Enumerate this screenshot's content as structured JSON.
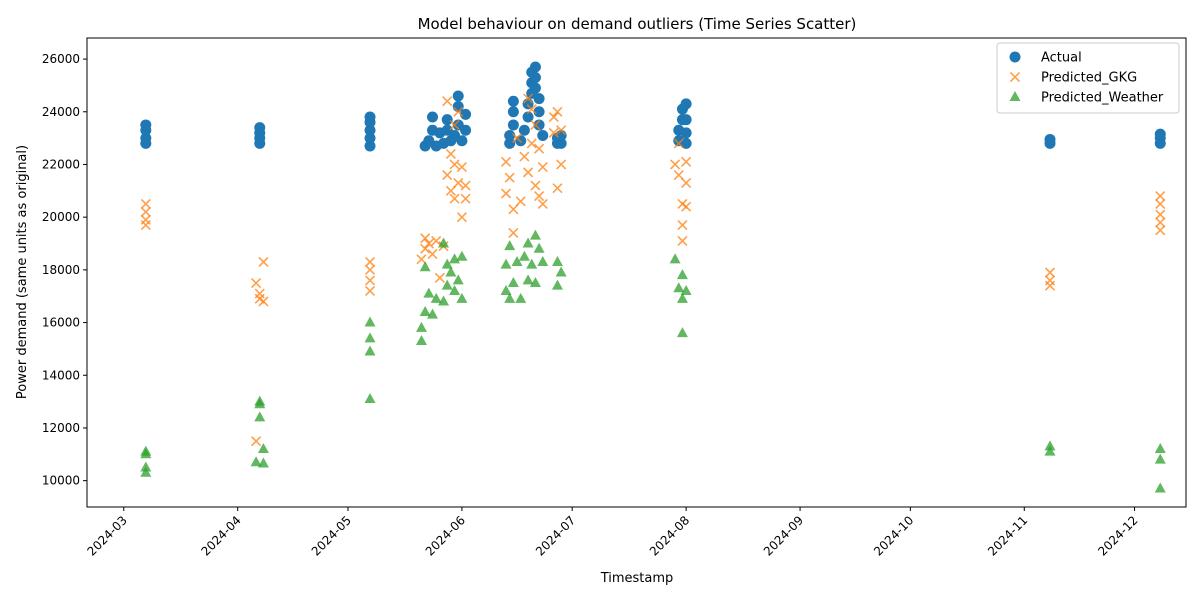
{
  "chart_data": {
    "type": "scatter",
    "title": "Model behaviour on demand outliers (Time Series Scatter)",
    "xlabel": "Timestamp",
    "ylabel": "Power demand (same units as original)",
    "xlim": [
      "2024-02-20",
      "2024-12-15"
    ],
    "ylim": [
      9000,
      26800
    ],
    "x_ticks": [
      "2024-03-01",
      "2024-04-01",
      "2024-05-01",
      "2024-06-01",
      "2024-07-01",
      "2024-08-01",
      "2024-09-01",
      "2024-10-01",
      "2024-11-01",
      "2024-12-01"
    ],
    "x_tick_labels": [
      "2024-03",
      "2024-04",
      "2024-05",
      "2024-06",
      "2024-07",
      "2024-08",
      "2024-09",
      "2024-10",
      "2024-11",
      "2024-12"
    ],
    "y_ticks": [
      10000,
      12000,
      14000,
      16000,
      18000,
      20000,
      22000,
      24000,
      26000
    ],
    "y_tick_labels": [
      "10000",
      "12000",
      "14000",
      "16000",
      "18000",
      "20000",
      "22000",
      "24000",
      "26000"
    ],
    "grid": false,
    "legend_position": "top-right",
    "series": [
      {
        "name": "Actual",
        "marker": "circle",
        "color": "#1f77b4",
        "points": [
          [
            "2024-03-07",
            22800
          ],
          [
            "2024-03-07",
            23000
          ],
          [
            "2024-03-07",
            23300
          ],
          [
            "2024-03-07",
            23500
          ],
          [
            "2024-04-07",
            22800
          ],
          [
            "2024-04-07",
            23000
          ],
          [
            "2024-04-07",
            23200
          ],
          [
            "2024-04-07",
            23400
          ],
          [
            "2024-05-07",
            22700
          ],
          [
            "2024-05-07",
            23000
          ],
          [
            "2024-05-07",
            23300
          ],
          [
            "2024-05-07",
            23600
          ],
          [
            "2024-05-07",
            23800
          ],
          [
            "2024-05-22",
            22700
          ],
          [
            "2024-05-23",
            22900
          ],
          [
            "2024-05-24",
            23300
          ],
          [
            "2024-05-24",
            23800
          ],
          [
            "2024-05-25",
            22700
          ],
          [
            "2024-05-26",
            23200
          ],
          [
            "2024-05-27",
            22800
          ],
          [
            "2024-05-28",
            23300
          ],
          [
            "2024-05-28",
            23700
          ],
          [
            "2024-05-29",
            22900
          ],
          [
            "2024-05-30",
            23100
          ],
          [
            "2024-05-31",
            23500
          ],
          [
            "2024-05-31",
            24200
          ],
          [
            "2024-05-31",
            24600
          ],
          [
            "2024-06-01",
            22900
          ],
          [
            "2024-06-02",
            23300
          ],
          [
            "2024-06-02",
            23900
          ],
          [
            "2024-06-14",
            22800
          ],
          [
            "2024-06-14",
            23100
          ],
          [
            "2024-06-15",
            23500
          ],
          [
            "2024-06-15",
            24000
          ],
          [
            "2024-06-15",
            24400
          ],
          [
            "2024-06-17",
            22900
          ],
          [
            "2024-06-18",
            23300
          ],
          [
            "2024-06-19",
            23800
          ],
          [
            "2024-06-19",
            24300
          ],
          [
            "2024-06-20",
            24700
          ],
          [
            "2024-06-20",
            25100
          ],
          [
            "2024-06-20",
            25500
          ],
          [
            "2024-06-21",
            25700
          ],
          [
            "2024-06-21",
            25300
          ],
          [
            "2024-06-21",
            24900
          ],
          [
            "2024-06-22",
            24500
          ],
          [
            "2024-06-22",
            24000
          ],
          [
            "2024-06-22",
            23500
          ],
          [
            "2024-06-23",
            23100
          ],
          [
            "2024-06-27",
            22800
          ],
          [
            "2024-06-27",
            23000
          ],
          [
            "2024-06-28",
            22800
          ],
          [
            "2024-06-28",
            23100
          ],
          [
            "2024-07-30",
            22900
          ],
          [
            "2024-07-30",
            23300
          ],
          [
            "2024-07-31",
            23700
          ],
          [
            "2024-07-31",
            24100
          ],
          [
            "2024-08-01",
            22800
          ],
          [
            "2024-08-01",
            23200
          ],
          [
            "2024-08-01",
            23700
          ],
          [
            "2024-08-01",
            24300
          ],
          [
            "2024-11-08",
            22800
          ],
          [
            "2024-11-08",
            22950
          ],
          [
            "2024-12-08",
            22800
          ],
          [
            "2024-12-08",
            23000
          ],
          [
            "2024-12-08",
            23150
          ]
        ]
      },
      {
        "name": "Predicted_GKG",
        "marker": "x",
        "color": "#ff7f0e",
        "points": [
          [
            "2024-03-07",
            20500
          ],
          [
            "2024-03-07",
            20200
          ],
          [
            "2024-03-07",
            19900
          ],
          [
            "2024-03-07",
            19700
          ],
          [
            "2024-04-06",
            17500
          ],
          [
            "2024-04-07",
            17100
          ],
          [
            "2024-04-07",
            16900
          ],
          [
            "2024-04-08",
            18300
          ],
          [
            "2024-04-08",
            16800
          ],
          [
            "2024-04-06",
            11500
          ],
          [
            "2024-05-07",
            18300
          ],
          [
            "2024-05-07",
            18000
          ],
          [
            "2024-05-07",
            17600
          ],
          [
            "2024-05-07",
            17200
          ],
          [
            "2024-05-21",
            18400
          ],
          [
            "2024-05-22",
            19200
          ],
          [
            "2024-05-22",
            18800
          ],
          [
            "2024-05-23",
            19000
          ],
          [
            "2024-05-24",
            18600
          ],
          [
            "2024-05-25",
            19100
          ],
          [
            "2024-05-26",
            17700
          ],
          [
            "2024-05-27",
            18900
          ],
          [
            "2024-05-28",
            24400
          ],
          [
            "2024-05-28",
            21600
          ],
          [
            "2024-05-29",
            22400
          ],
          [
            "2024-05-29",
            21000
          ],
          [
            "2024-05-30",
            23500
          ],
          [
            "2024-05-30",
            22000
          ],
          [
            "2024-05-30",
            20700
          ],
          [
            "2024-05-31",
            24000
          ],
          [
            "2024-05-31",
            21300
          ],
          [
            "2024-06-01",
            20000
          ],
          [
            "2024-06-01",
            21900
          ],
          [
            "2024-06-02",
            21200
          ],
          [
            "2024-06-02",
            20700
          ],
          [
            "2024-06-13",
            22100
          ],
          [
            "2024-06-13",
            20900
          ],
          [
            "2024-06-14",
            21500
          ],
          [
            "2024-06-15",
            20300
          ],
          [
            "2024-06-15",
            19400
          ],
          [
            "2024-06-16",
            23000
          ],
          [
            "2024-06-17",
            20600
          ],
          [
            "2024-06-18",
            22300
          ],
          [
            "2024-06-19",
            24500
          ],
          [
            "2024-06-19",
            21700
          ],
          [
            "2024-06-20",
            24100
          ],
          [
            "2024-06-20",
            22800
          ],
          [
            "2024-06-21",
            23500
          ],
          [
            "2024-06-21",
            21200
          ],
          [
            "2024-06-22",
            22600
          ],
          [
            "2024-06-22",
            20800
          ],
          [
            "2024-06-23",
            21900
          ],
          [
            "2024-06-23",
            20500
          ],
          [
            "2024-06-26",
            23800
          ],
          [
            "2024-06-26",
            23200
          ],
          [
            "2024-06-27",
            24000
          ],
          [
            "2024-06-27",
            21100
          ],
          [
            "2024-06-28",
            22000
          ],
          [
            "2024-06-28",
            23300
          ],
          [
            "2024-07-29",
            22000
          ],
          [
            "2024-07-30",
            21600
          ],
          [
            "2024-07-30",
            22800
          ],
          [
            "2024-07-31",
            20500
          ],
          [
            "2024-07-31",
            19700
          ],
          [
            "2024-07-31",
            19100
          ],
          [
            "2024-08-01",
            22100
          ],
          [
            "2024-08-01",
            21300
          ],
          [
            "2024-08-01",
            20400
          ],
          [
            "2024-11-08",
            17900
          ],
          [
            "2024-11-08",
            17600
          ],
          [
            "2024-11-08",
            17400
          ],
          [
            "2024-12-08",
            20800
          ],
          [
            "2024-12-08",
            20500
          ],
          [
            "2024-12-08",
            20100
          ],
          [
            "2024-12-08",
            19800
          ],
          [
            "2024-12-08",
            19500
          ]
        ]
      },
      {
        "name": "Predicted_Weather",
        "marker": "triangle",
        "color": "#2ca02c",
        "points": [
          [
            "2024-03-07",
            11100
          ],
          [
            "2024-03-07",
            11000
          ],
          [
            "2024-03-07",
            10500
          ],
          [
            "2024-03-07",
            10300
          ],
          [
            "2024-04-07",
            13000
          ],
          [
            "2024-04-07",
            12900
          ],
          [
            "2024-04-07",
            12400
          ],
          [
            "2024-04-08",
            11200
          ],
          [
            "2024-04-06",
            10700
          ],
          [
            "2024-04-08",
            10650
          ],
          [
            "2024-05-07",
            16000
          ],
          [
            "2024-05-07",
            15400
          ],
          [
            "2024-05-07",
            14900
          ],
          [
            "2024-05-07",
            13100
          ],
          [
            "2024-05-21",
            15300
          ],
          [
            "2024-05-21",
            15800
          ],
          [
            "2024-05-22",
            16400
          ],
          [
            "2024-05-22",
            18100
          ],
          [
            "2024-05-23",
            17100
          ],
          [
            "2024-05-24",
            16300
          ],
          [
            "2024-05-25",
            16900
          ],
          [
            "2024-05-27",
            19000
          ],
          [
            "2024-05-27",
            16800
          ],
          [
            "2024-05-28",
            18200
          ],
          [
            "2024-05-28",
            17400
          ],
          [
            "2024-05-29",
            17900
          ],
          [
            "2024-05-30",
            18400
          ],
          [
            "2024-05-30",
            17200
          ],
          [
            "2024-05-31",
            17600
          ],
          [
            "2024-06-01",
            18500
          ],
          [
            "2024-06-01",
            16900
          ],
          [
            "2024-06-13",
            18200
          ],
          [
            "2024-06-13",
            17200
          ],
          [
            "2024-06-14",
            18900
          ],
          [
            "2024-06-14",
            16900
          ],
          [
            "2024-06-15",
            17500
          ],
          [
            "2024-06-16",
            18300
          ],
          [
            "2024-06-17",
            16900
          ],
          [
            "2024-06-18",
            18500
          ],
          [
            "2024-06-19",
            19000
          ],
          [
            "2024-06-19",
            17600
          ],
          [
            "2024-06-20",
            18200
          ],
          [
            "2024-06-21",
            19300
          ],
          [
            "2024-06-21",
            17500
          ],
          [
            "2024-06-22",
            18800
          ],
          [
            "2024-06-23",
            18300
          ],
          [
            "2024-06-27",
            18300
          ],
          [
            "2024-06-27",
            17400
          ],
          [
            "2024-06-28",
            17900
          ],
          [
            "2024-07-29",
            18400
          ],
          [
            "2024-07-30",
            17300
          ],
          [
            "2024-07-31",
            17800
          ],
          [
            "2024-07-31",
            16900
          ],
          [
            "2024-08-01",
            17200
          ],
          [
            "2024-07-31",
            15600
          ],
          [
            "2024-11-08",
            11300
          ],
          [
            "2024-11-08",
            11100
          ],
          [
            "2024-12-08",
            11200
          ],
          [
            "2024-12-08",
            10800
          ],
          [
            "2024-12-08",
            9700
          ]
        ]
      }
    ]
  }
}
